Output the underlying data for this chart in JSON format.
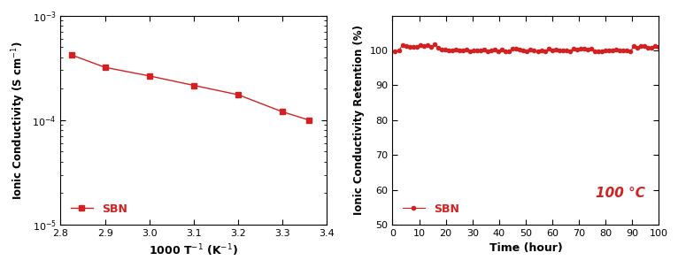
{
  "plot1": {
    "x": [
      2.825,
      2.9,
      3.0,
      3.1,
      3.2,
      3.3,
      3.36
    ],
    "y": [
      0.00042,
      0.00032,
      0.000265,
      0.000215,
      0.000175,
      0.00012,
      0.0001
    ],
    "xlabel": "1000 T$^{-1}$ (K$^{-1}$)",
    "ylabel": "Ionic Conductivity (S cm$^{-1}$)",
    "xlim": [
      2.8,
      3.4
    ],
    "ylim": [
      1e-05,
      0.001
    ],
    "xticks": [
      2.8,
      2.9,
      3.0,
      3.1,
      3.2,
      3.3,
      3.4
    ],
    "legend": "SBN",
    "color": "#d42020",
    "marker": "s",
    "markersize": 5,
    "linewidth": 1.0
  },
  "plot2": {
    "xlabel": "Time (hour)",
    "ylabel": "Ionic Conductivity Retention (%)",
    "xlim": [
      0,
      100
    ],
    "ylim": [
      50,
      110
    ],
    "yticks": [
      50,
      60,
      70,
      80,
      90,
      100
    ],
    "xticks": [
      0,
      10,
      20,
      30,
      40,
      50,
      60,
      70,
      80,
      90,
      100
    ],
    "legend": "SBN",
    "annotation": "100 °C",
    "color": "#d42020",
    "marker": "o",
    "markersize": 3,
    "linewidth": 0.8
  },
  "background_color": "#ffffff",
  "panel_color": "#ffffff"
}
